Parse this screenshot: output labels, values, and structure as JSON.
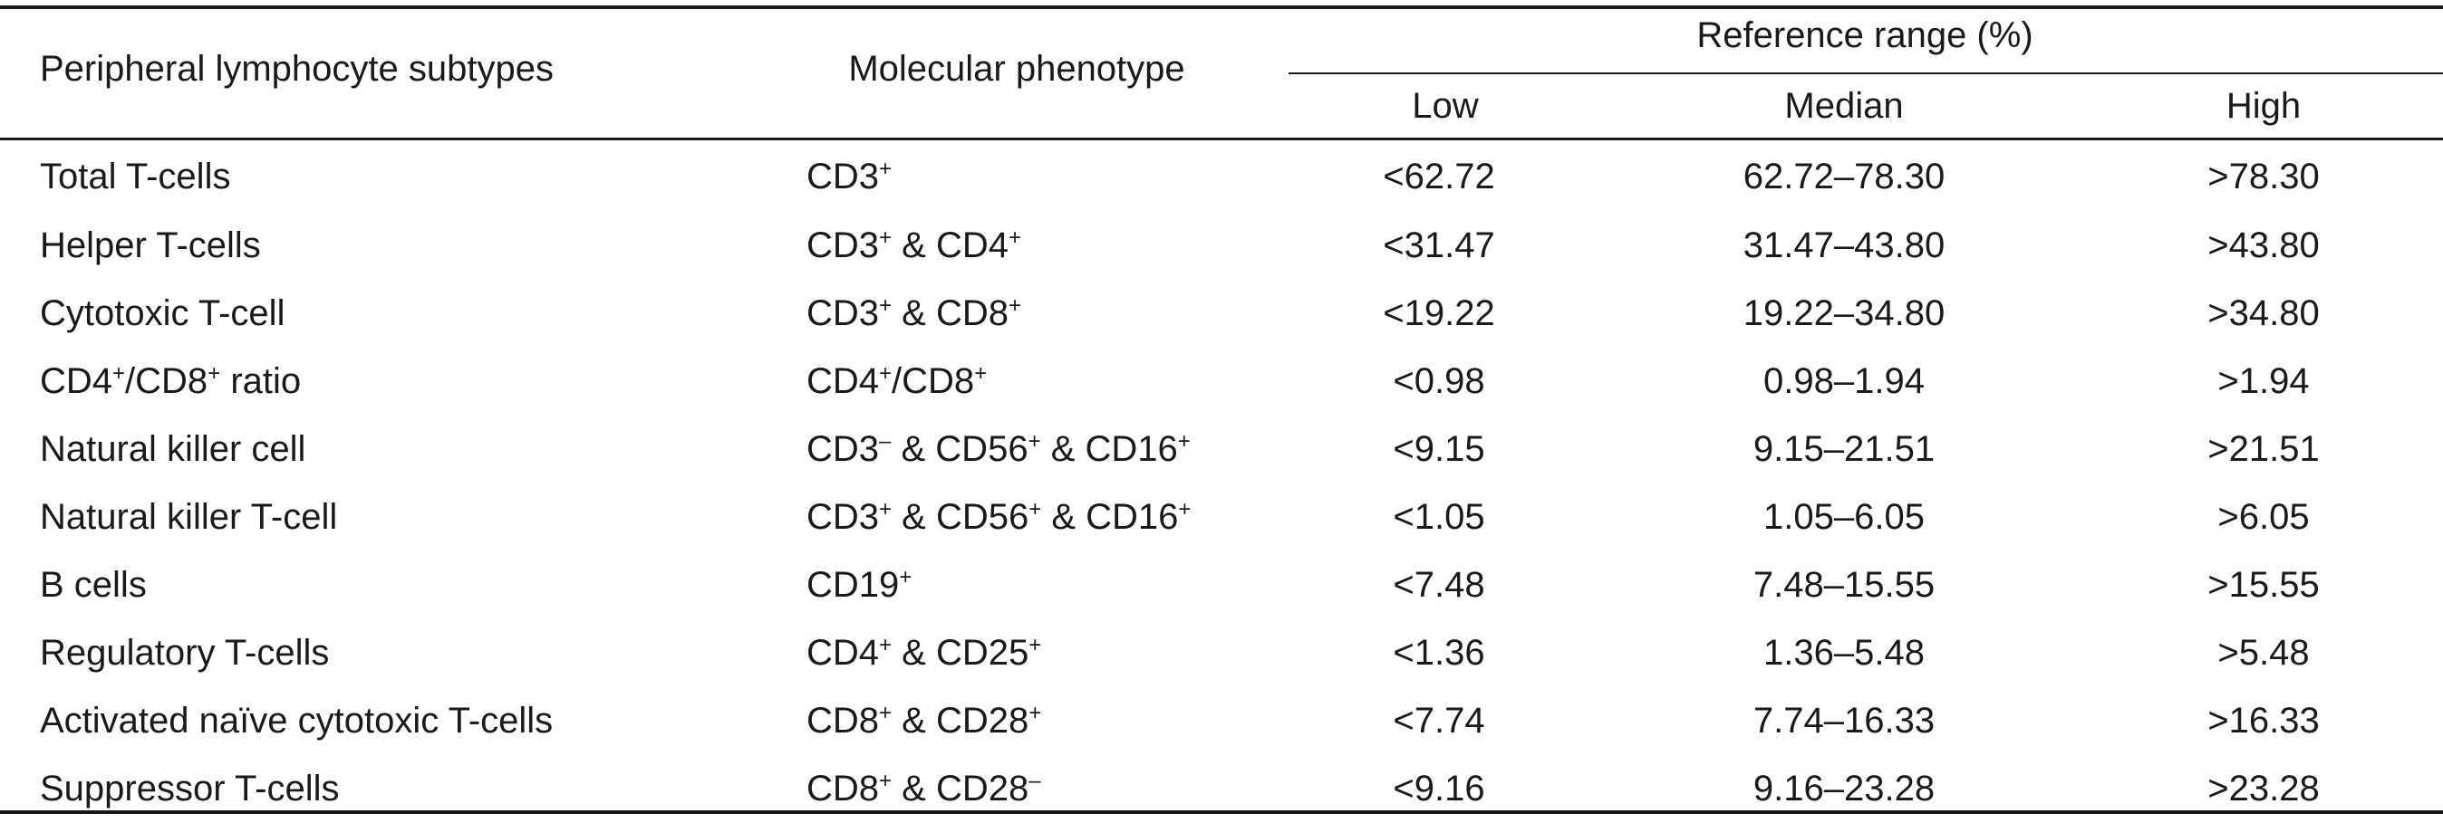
{
  "table": {
    "headers": {
      "subtype": "Peripheral lymphocyte subtypes",
      "phenotype": "Molecular phenotype",
      "reference_range": "Reference range (%)",
      "low": "Low",
      "median": "Median",
      "high": "High"
    },
    "rows": [
      {
        "subtype": [
          {
            "t": "Total T-cells"
          }
        ],
        "phenotype": [
          {
            "t": "CD3"
          },
          {
            "t": "+",
            "sup": true
          }
        ],
        "low": "<62.72",
        "median": "62.72–78.30",
        "high": ">78.30"
      },
      {
        "subtype": [
          {
            "t": "Helper T-cells"
          }
        ],
        "phenotype": [
          {
            "t": "CD3"
          },
          {
            "t": "+",
            "sup": true
          },
          {
            "t": " & CD4"
          },
          {
            "t": "+",
            "sup": true
          }
        ],
        "low": "<31.47",
        "median": "31.47–43.80",
        "high": ">43.80"
      },
      {
        "subtype": [
          {
            "t": "Cytotoxic T-cell"
          }
        ],
        "phenotype": [
          {
            "t": "CD3"
          },
          {
            "t": "+",
            "sup": true
          },
          {
            "t": " & CD8"
          },
          {
            "t": "+",
            "sup": true
          }
        ],
        "low": "<19.22",
        "median": "19.22–34.80",
        "high": ">34.80"
      },
      {
        "subtype": [
          {
            "t": "CD4"
          },
          {
            "t": "+",
            "sup": true
          },
          {
            "t": "/CD8"
          },
          {
            "t": "+",
            "sup": true
          },
          {
            "t": " ratio"
          }
        ],
        "phenotype": [
          {
            "t": "CD4"
          },
          {
            "t": "+",
            "sup": true
          },
          {
            "t": "/CD8"
          },
          {
            "t": "+",
            "sup": true
          }
        ],
        "low": "<0.98",
        "median": "0.98–1.94",
        "high": ">1.94"
      },
      {
        "subtype": [
          {
            "t": "Natural killer cell"
          }
        ],
        "phenotype": [
          {
            "t": "CD3"
          },
          {
            "t": "–",
            "sup": true
          },
          {
            "t": " & CD56"
          },
          {
            "t": "+",
            "sup": true
          },
          {
            "t": " & CD16"
          },
          {
            "t": "+",
            "sup": true
          }
        ],
        "low": "<9.15",
        "median": "9.15–21.51",
        "high": ">21.51"
      },
      {
        "subtype": [
          {
            "t": "Natural killer T-cell"
          }
        ],
        "phenotype": [
          {
            "t": "CD3"
          },
          {
            "t": "+",
            "sup": true
          },
          {
            "t": " & CD56"
          },
          {
            "t": "+",
            "sup": true
          },
          {
            "t": " & CD16"
          },
          {
            "t": "+",
            "sup": true
          }
        ],
        "low": "<1.05",
        "median": "1.05–6.05",
        "high": ">6.05"
      },
      {
        "subtype": [
          {
            "t": "B cells"
          }
        ],
        "phenotype": [
          {
            "t": "CD19"
          },
          {
            "t": "+",
            "sup": true
          }
        ],
        "low": "<7.48",
        "median": "7.48–15.55",
        "high": ">15.55"
      },
      {
        "subtype": [
          {
            "t": "Regulatory T-cells"
          }
        ],
        "phenotype": [
          {
            "t": "CD4"
          },
          {
            "t": "+",
            "sup": true
          },
          {
            "t": " & CD25"
          },
          {
            "t": "+",
            "sup": true
          }
        ],
        "low": "<1.36",
        "median": "1.36–5.48",
        "high": ">5.48"
      },
      {
        "subtype": [
          {
            "t": "Activated naïve cytotoxic T-cells"
          }
        ],
        "phenotype": [
          {
            "t": "CD8"
          },
          {
            "t": "+",
            "sup": true
          },
          {
            "t": " & CD28"
          },
          {
            "t": "+",
            "sup": true
          }
        ],
        "low": "<7.74",
        "median": "7.74–16.33",
        "high": ">16.33"
      },
      {
        "subtype": [
          {
            "t": "Suppressor T-cells"
          }
        ],
        "phenotype": [
          {
            "t": "CD8"
          },
          {
            "t": "+",
            "sup": true
          },
          {
            "t": " & CD28"
          },
          {
            "t": "–",
            "sup": true
          }
        ],
        "low": "<9.16",
        "median": "9.16–23.28",
        "high": ">23.28"
      }
    ]
  }
}
